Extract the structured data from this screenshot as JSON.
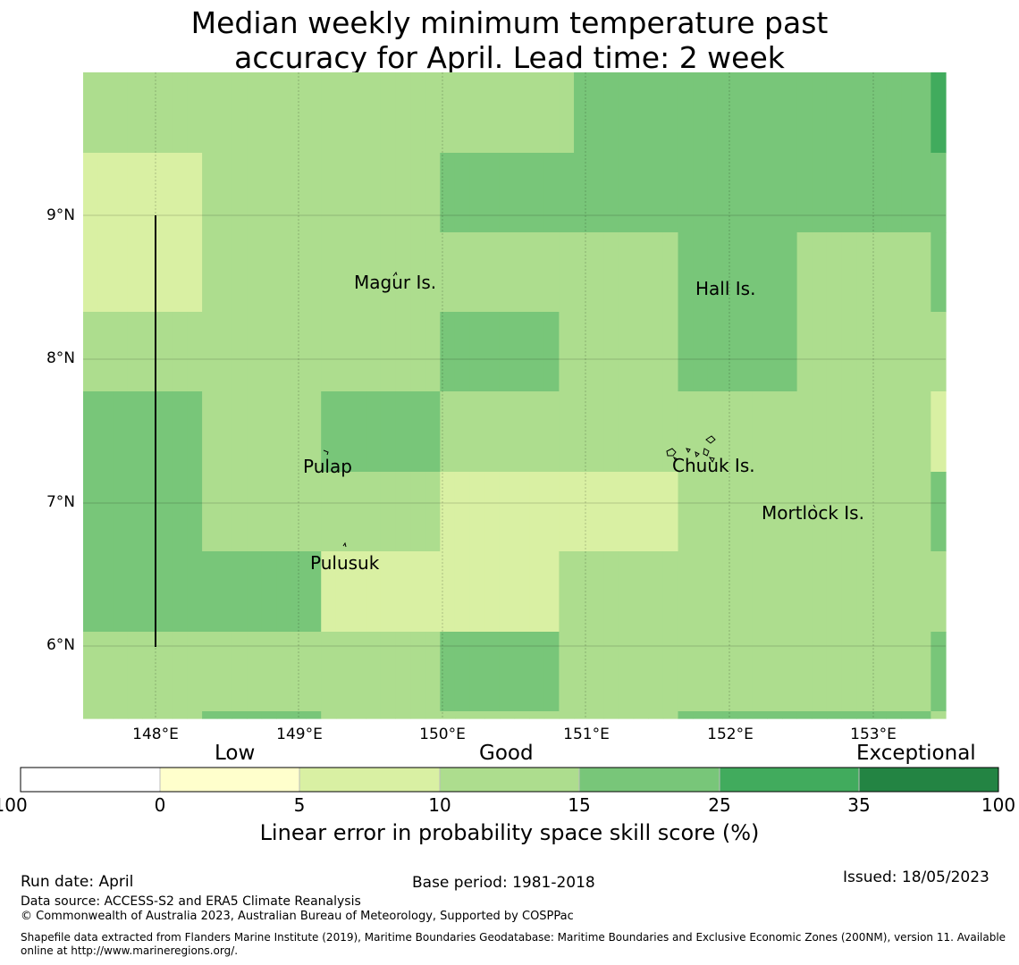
{
  "title_line1": "Median weekly minimum temperature past",
  "title_line2": "accuracy for April. Lead time: 2 week",
  "lat_labels": [
    "9°N",
    "8°N",
    "7°N",
    "6°N"
  ],
  "lon_labels": [
    "148°E",
    "149°E",
    "150°E",
    "151°E",
    "152°E",
    "153°E"
  ],
  "places": {
    "magur": "Magur Is.",
    "hall": "Hall Is.",
    "pulap": "Pulap",
    "chuuk": "Chuuk Is.",
    "mortlock": "Mortlock Is.",
    "pulusuk": "Pulusuk"
  },
  "grid_levels": [
    [
      3,
      3,
      3,
      3,
      3,
      3,
      3,
      3,
      3,
      3,
      3,
      3,
      3,
      3,
      3,
      3,
      3,
      3,
      3,
      3,
      3,
      3,
      3,
      3,
      3,
      3,
      3,
      3,
      3,
      3,
      3,
      3,
      3,
      4,
      4,
      4,
      4,
      4,
      4,
      4,
      4,
      4,
      4,
      4,
      4,
      4,
      4,
      4,
      4,
      4,
      4,
      4,
      4,
      4,
      4,
      4,
      4,
      5
    ],
    [
      2,
      2,
      2,
      2,
      2,
      2,
      2,
      2,
      3,
      3,
      3,
      3,
      3,
      3,
      3,
      3,
      3,
      3,
      3,
      3,
      3,
      3,
      3,
      3,
      4,
      4,
      4,
      4,
      4,
      4,
      4,
      4,
      4,
      4,
      4,
      4,
      4,
      4,
      4,
      4,
      4,
      4,
      4,
      4,
      4,
      4,
      4,
      4,
      4,
      4,
      4,
      4,
      4,
      4,
      4,
      4,
      4,
      4
    ],
    [
      2,
      2,
      2,
      2,
      2,
      2,
      2,
      2,
      3,
      3,
      3,
      3,
      3,
      3,
      3,
      3,
      3,
      3,
      3,
      3,
      3,
      3,
      3,
      3,
      3,
      3,
      3,
      3,
      3,
      3,
      3,
      3,
      3,
      3,
      3,
      3,
      3,
      3,
      3,
      3,
      4,
      4,
      4,
      4,
      4,
      4,
      4,
      4,
      3,
      3,
      3,
      3,
      3,
      3,
      3,
      3,
      3,
      4
    ],
    [
      3,
      3,
      3,
      3,
      3,
      3,
      3,
      3,
      3,
      3,
      3,
      3,
      3,
      3,
      3,
      3,
      3,
      3,
      3,
      3,
      3,
      3,
      3,
      3,
      4,
      4,
      4,
      4,
      4,
      4,
      4,
      4,
      3,
      3,
      3,
      3,
      3,
      3,
      3,
      3,
      4,
      4,
      4,
      4,
      4,
      4,
      4,
      4,
      3,
      3,
      3,
      3,
      3,
      3,
      3,
      3,
      3,
      3
    ],
    [
      4,
      4,
      4,
      4,
      4,
      4,
      4,
      4,
      3,
      3,
      3,
      3,
      3,
      3,
      3,
      3,
      4,
      4,
      4,
      4,
      4,
      4,
      4,
      4,
      3,
      3,
      3,
      3,
      3,
      3,
      3,
      3,
      3,
      3,
      3,
      3,
      3,
      3,
      3,
      3,
      3,
      3,
      3,
      3,
      3,
      3,
      3,
      3,
      3,
      3,
      3,
      3,
      3,
      3,
      3,
      3,
      3,
      2
    ],
    [
      4,
      4,
      4,
      4,
      4,
      4,
      4,
      4,
      3,
      3,
      3,
      3,
      3,
      3,
      3,
      3,
      3,
      3,
      3,
      3,
      3,
      3,
      3,
      3,
      2,
      2,
      2,
      2,
      2,
      2,
      2,
      2,
      2,
      2,
      2,
      2,
      2,
      2,
      2,
      2,
      3,
      3,
      3,
      3,
      3,
      3,
      3,
      3,
      3,
      3,
      3,
      3,
      3,
      3,
      3,
      3,
      3,
      4
    ],
    [
      4,
      4,
      4,
      4,
      4,
      4,
      4,
      4,
      4,
      4,
      4,
      4,
      4,
      4,
      4,
      4,
      2,
      2,
      2,
      2,
      2,
      2,
      2,
      2,
      2,
      2,
      2,
      2,
      2,
      2,
      2,
      2,
      3,
      3,
      3,
      3,
      3,
      3,
      3,
      3,
      3,
      3,
      3,
      3,
      3,
      3,
      3,
      3,
      3,
      3,
      3,
      3,
      3,
      3,
      3,
      3,
      3,
      3
    ],
    [
      3,
      3,
      3,
      3,
      3,
      3,
      3,
      3,
      3,
      3,
      3,
      3,
      3,
      3,
      3,
      3,
      3,
      3,
      3,
      3,
      3,
      3,
      3,
      3,
      4,
      4,
      4,
      4,
      4,
      4,
      4,
      4,
      3,
      3,
      3,
      3,
      3,
      3,
      3,
      3,
      3,
      3,
      3,
      3,
      3,
      3,
      3,
      3,
      3,
      3,
      3,
      3,
      3,
      3,
      3,
      3,
      3,
      4
    ],
    [
      3,
      3,
      3,
      3,
      3,
      3,
      3,
      3,
      4,
      4,
      4,
      4,
      4,
      4,
      4,
      4,
      3,
      3,
      3,
      3,
      3,
      3,
      3,
      3,
      3,
      3,
      3,
      3,
      3,
      3,
      3,
      3,
      3,
      3,
      3,
      3,
      3,
      3,
      3,
      3,
      4,
      4,
      4,
      4,
      4,
      4,
      4,
      4,
      4,
      4,
      4,
      4,
      4,
      4,
      4,
      4,
      4,
      3
    ]
  ],
  "level_colors": [
    "#ffffff",
    "#ffffcc",
    "#d9f0a3",
    "#addd8e",
    "#78c679",
    "#41ab5d",
    "#238443"
  ],
  "colorbar": {
    "headers": {
      "low": "Low",
      "good": "Good",
      "exceptional": "Exceptional"
    },
    "ticks": [
      "-100",
      "0",
      "5",
      "10",
      "15",
      "25",
      "35",
      "100"
    ],
    "title": "Linear error in probability space skill score (%)"
  },
  "footer": {
    "run_date": "Run date: April",
    "base_period": "Base period: 1981-2018",
    "issued": "Issued: 18/05/2023",
    "data_source": "Data source: ACCESS-S2 and ERA5 Climate Reanalysis",
    "copyright": "© Commonwealth of Australia 2023, Australian Bureau of Meteorology, Supported by COSPPac",
    "shapefile_line1": "Shapefile data extracted from Flanders Marine Institute (2019), Maritime Boundaries Geodatabase: Maritime Boundaries and Exclusive Economic Zones (200NM), version 11. Available",
    "shapefile_line2": "online at http://www.marineregions.org/."
  }
}
